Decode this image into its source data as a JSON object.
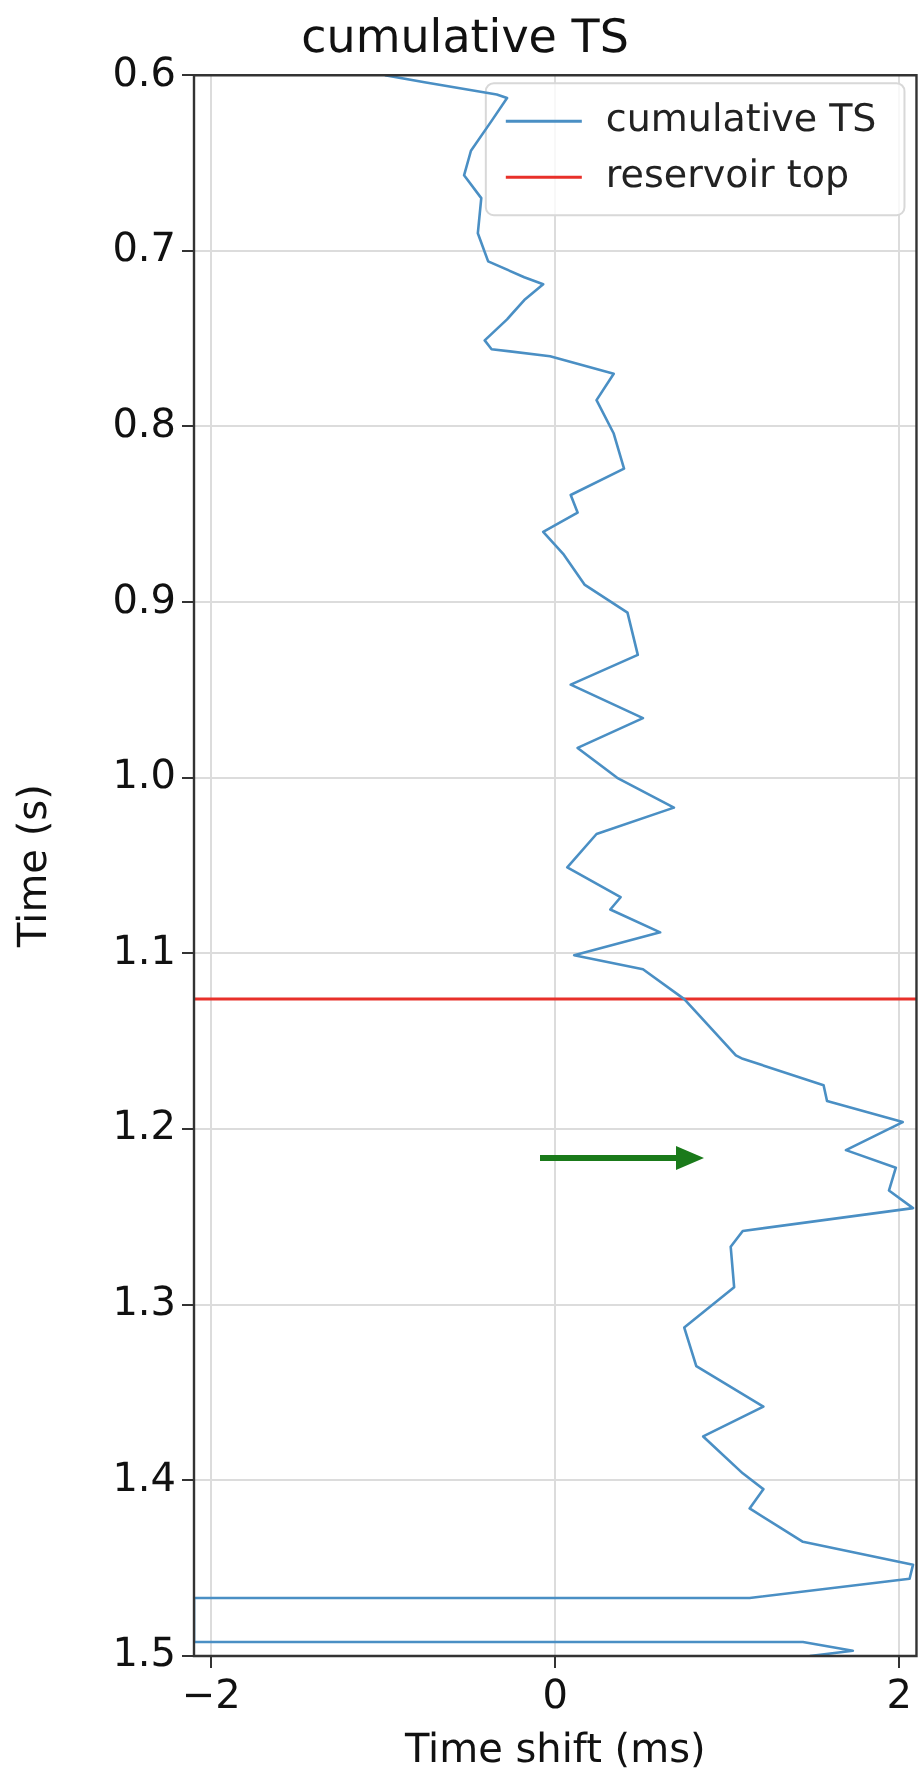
{
  "chart_data": {
    "type": "line",
    "title": "cumulative TS",
    "xlabel": "Time shift (ms)",
    "ylabel": "Time (s)",
    "xlim": [
      -2.1,
      2.1
    ],
    "xticks": [
      {
        "value": -2,
        "label": "−2"
      },
      0,
      2
    ],
    "ylim": [
      1.5,
      0.6
    ],
    "yticks": [
      0.6,
      0.7,
      0.8,
      0.9,
      {
        "value": 1.0,
        "label": "1.0"
      },
      1.1,
      1.2,
      1.3,
      1.4,
      1.5
    ],
    "grid": true,
    "legend": "top right",
    "marker": "none",
    "line_style": "solid",
    "series": [
      {
        "name": "cumulative TS",
        "color": "#4a8fc4",
        "x": [
          -0.99,
          -0.76,
          -0.34,
          -0.28,
          -0.37,
          -0.49,
          -0.53,
          -0.43,
          -0.45,
          -0.39,
          -0.18,
          -0.07,
          -0.18,
          -0.28,
          -0.41,
          -0.37,
          -0.03,
          0.34,
          0.24,
          0.34,
          0.4,
          0.09,
          0.13,
          -0.07,
          0.05,
          0.17,
          0.42,
          0.48,
          0.09,
          0.51,
          0.13,
          0.36,
          0.69,
          0.24,
          0.07,
          0.38,
          0.32,
          0.61,
          0.11,
          0.51,
          0.75,
          1.05,
          1.09,
          1.56,
          1.58,
          2.02,
          1.69,
          1.98,
          1.94,
          2.08,
          1.09,
          1.02,
          1.04,
          0.75,
          0.82,
          1.21,
          0.86,
          1.09,
          1.21,
          1.13,
          1.44,
          2.08,
          2.06,
          1.13,
          -2.1,
          -2.1,
          1.44,
          1.73,
          1.48
        ],
        "values": [
          0.6,
          0.604,
          0.611,
          0.613,
          0.626,
          0.643,
          0.657,
          0.67,
          0.69,
          0.706,
          0.715,
          0.719,
          0.728,
          0.739,
          0.751,
          0.756,
          0.76,
          0.77,
          0.785,
          0.804,
          0.824,
          0.839,
          0.849,
          0.86,
          0.873,
          0.89,
          0.906,
          0.93,
          0.947,
          0.966,
          0.983,
          1.0,
          1.017,
          1.032,
          1.051,
          1.068,
          1.075,
          1.088,
          1.101,
          1.109,
          1.126,
          1.158,
          1.16,
          1.175,
          1.184,
          1.196,
          1.212,
          1.222,
          1.235,
          1.245,
          1.258,
          1.267,
          1.29,
          1.313,
          1.335,
          1.358,
          1.375,
          1.396,
          1.405,
          1.416,
          1.435,
          1.448,
          1.456,
          1.467,
          1.467,
          1.492,
          1.492,
          1.497,
          1.5
        ]
      }
    ],
    "ref_lines": [
      {
        "axis": "y",
        "value": 1.126,
        "label": "reservoir top",
        "color": "#e8302a",
        "line_style": "solid"
      }
    ]
  }
}
